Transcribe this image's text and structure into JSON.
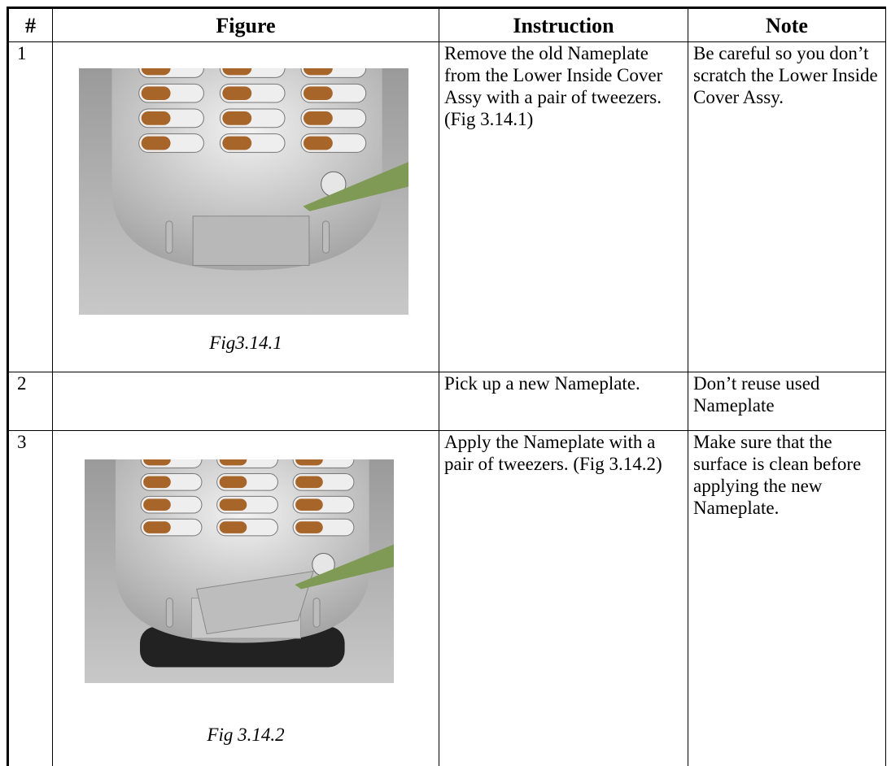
{
  "table": {
    "header": [
      "#",
      "Figure",
      "Instruction",
      "Note"
    ],
    "rows": [
      {
        "number": "1",
        "caption": "Fig3.14.1",
        "instruction": "Remove the old Nameplate from the Lower Inside Cover Assy with a pair of tweezers. (Fig 3.14.1)",
        "note": "Be careful so you don’t scratch the Lower Inside Cover Assy."
      },
      {
        "number": "2",
        "instruction": "Pick up a new Nameplate.",
        "note": "Don’t reuse used Nameplate"
      },
      {
        "number": "3",
        "caption": "Fig 3.14.2",
        "instruction": "Apply the Nameplate with a pair of tweezers. (Fig 3.14.2)",
        "note": "Make sure that the surface is clean before applying the new Nameplate."
      }
    ]
  }
}
